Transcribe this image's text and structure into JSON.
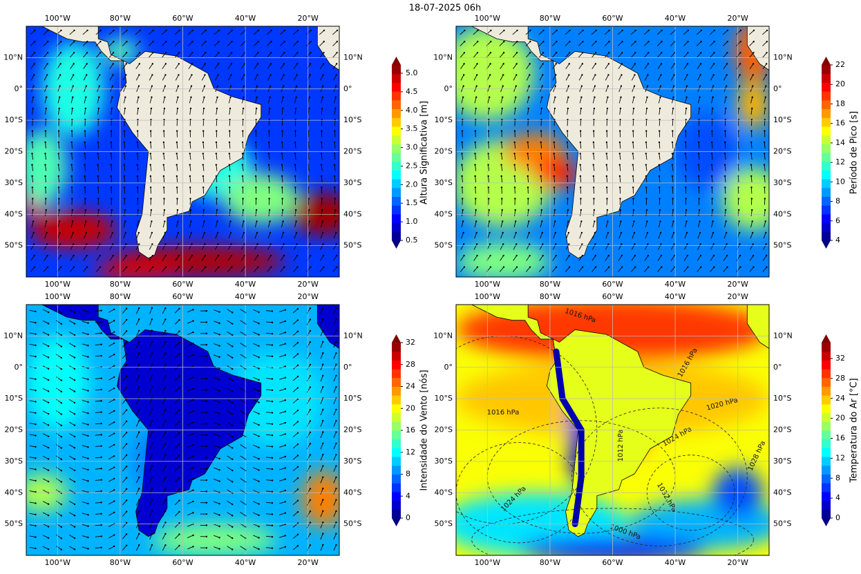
{
  "title": "18-07-2025 06h",
  "lon_labels": [
    "100°W",
    "80°W",
    "60°W",
    "40°W",
    "20°W"
  ],
  "lat_labels": [
    "10°N",
    "0°",
    "10°S",
    "20°S",
    "30°S",
    "40°S",
    "50°S"
  ],
  "panels": [
    {
      "colorbar": {
        "label": "Altura Significativa [m]",
        "ticks": [
          "0.5",
          "1.0",
          "1.5",
          "2.0",
          "2.5",
          "3.0",
          "3.5",
          "4.0",
          "4.5",
          "5.0"
        ]
      }
    },
    {
      "colorbar": {
        "label": "Período de Pico [s]",
        "ticks": [
          "4",
          "6",
          "8",
          "10",
          "12",
          "14",
          "16",
          "18",
          "20",
          "22"
        ]
      }
    },
    {
      "colorbar": {
        "label": "Intensidade do Vento [nós]",
        "ticks": [
          "0",
          "4",
          "8",
          "12",
          "16",
          "20",
          "24",
          "28",
          "32"
        ]
      }
    },
    {
      "colorbar": {
        "label": "Temperatura do Ar [°C]",
        "ticks": [
          "0",
          "4",
          "8",
          "12",
          "16",
          "20",
          "24",
          "28",
          "32"
        ]
      },
      "contour_labels": [
        "1016 hPa",
        "1016 hPa",
        "1016 hPa",
        "1020 hPa",
        "1024 hPa",
        "1012 hPa",
        "1028 hPa",
        "1024 hPa",
        "1032 hPa",
        "1000 hPa"
      ]
    }
  ]
}
